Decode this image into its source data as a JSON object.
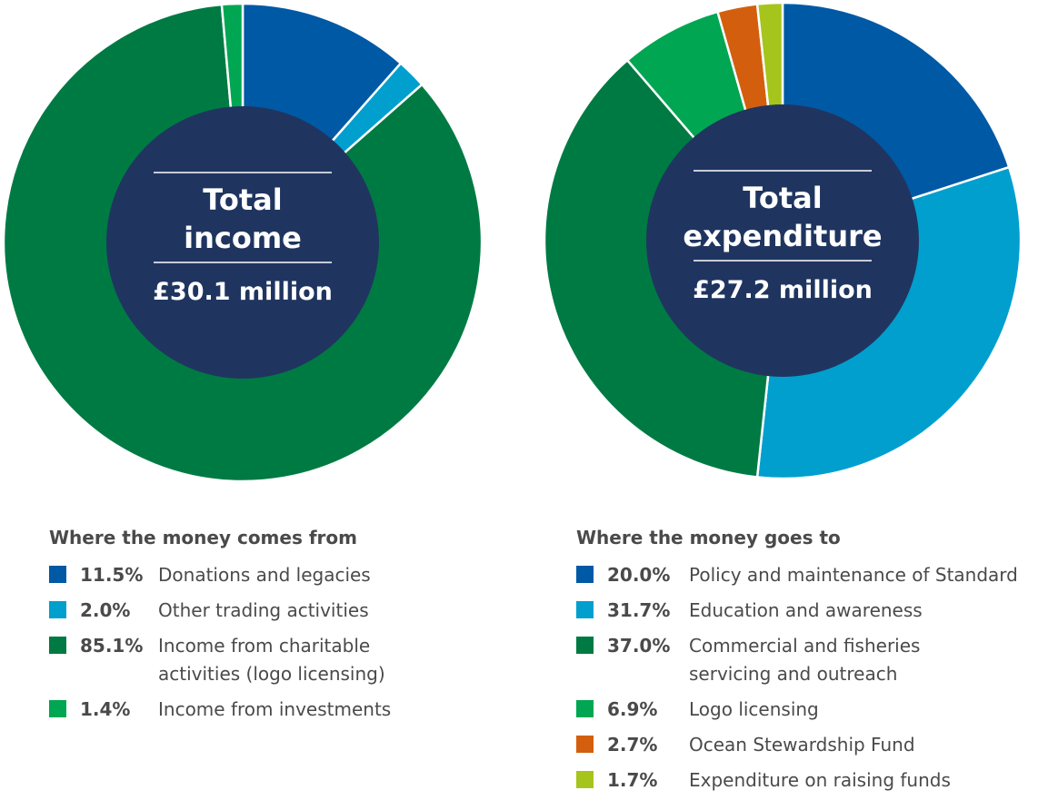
{
  "chart_data": [
    {
      "type": "pie",
      "center_title_lines": [
        "Total",
        "income"
      ],
      "center_total": "£30.1 million",
      "legend_title": "Where the money comes from",
      "slices": [
        {
          "label": "Donations and legacies",
          "value": 11.5,
          "pct_text": "11.5%",
          "color": "#0059a5"
        },
        {
          "label": "Other trading activities",
          "value": 2.0,
          "pct_text": "2.0%",
          "color": "#009fce"
        },
        {
          "label": "Income from charitable\nactivities (logo licensing)",
          "value": 85.1,
          "pct_text": "85.1%",
          "color": "#007a43"
        },
        {
          "label": "Income from investments",
          "value": 1.4,
          "pct_text": "1.4%",
          "color": "#00a651"
        }
      ]
    },
    {
      "type": "pie",
      "center_title_lines": [
        "Total",
        "expenditure"
      ],
      "center_total": "£27.2 million",
      "legend_title": "Where the money goes to",
      "slices": [
        {
          "label": "Policy and maintenance of Standard",
          "value": 20.0,
          "pct_text": "20.0%",
          "color": "#0059a5"
        },
        {
          "label": "Education and awareness",
          "value": 31.7,
          "pct_text": "31.7%",
          "color": "#009fce"
        },
        {
          "label": "Commercial and fisheries\nservicing and outreach",
          "value": 37.0,
          "pct_text": "37.0%",
          "color": "#007a43"
        },
        {
          "label": "Logo licensing",
          "value": 6.9,
          "pct_text": "6.9%",
          "color": "#00a651"
        },
        {
          "label": "Ocean Stewardship Fund",
          "value": 2.7,
          "pct_text": "2.7%",
          "color": "#d35f0e"
        },
        {
          "label": "Expenditure on raising funds",
          "value": 1.7,
          "pct_text": "1.7%",
          "color": "#a5c51c"
        }
      ]
    }
  ],
  "colors": {
    "center_fill": "#1f3560",
    "center_rule": "#ffffff"
  }
}
